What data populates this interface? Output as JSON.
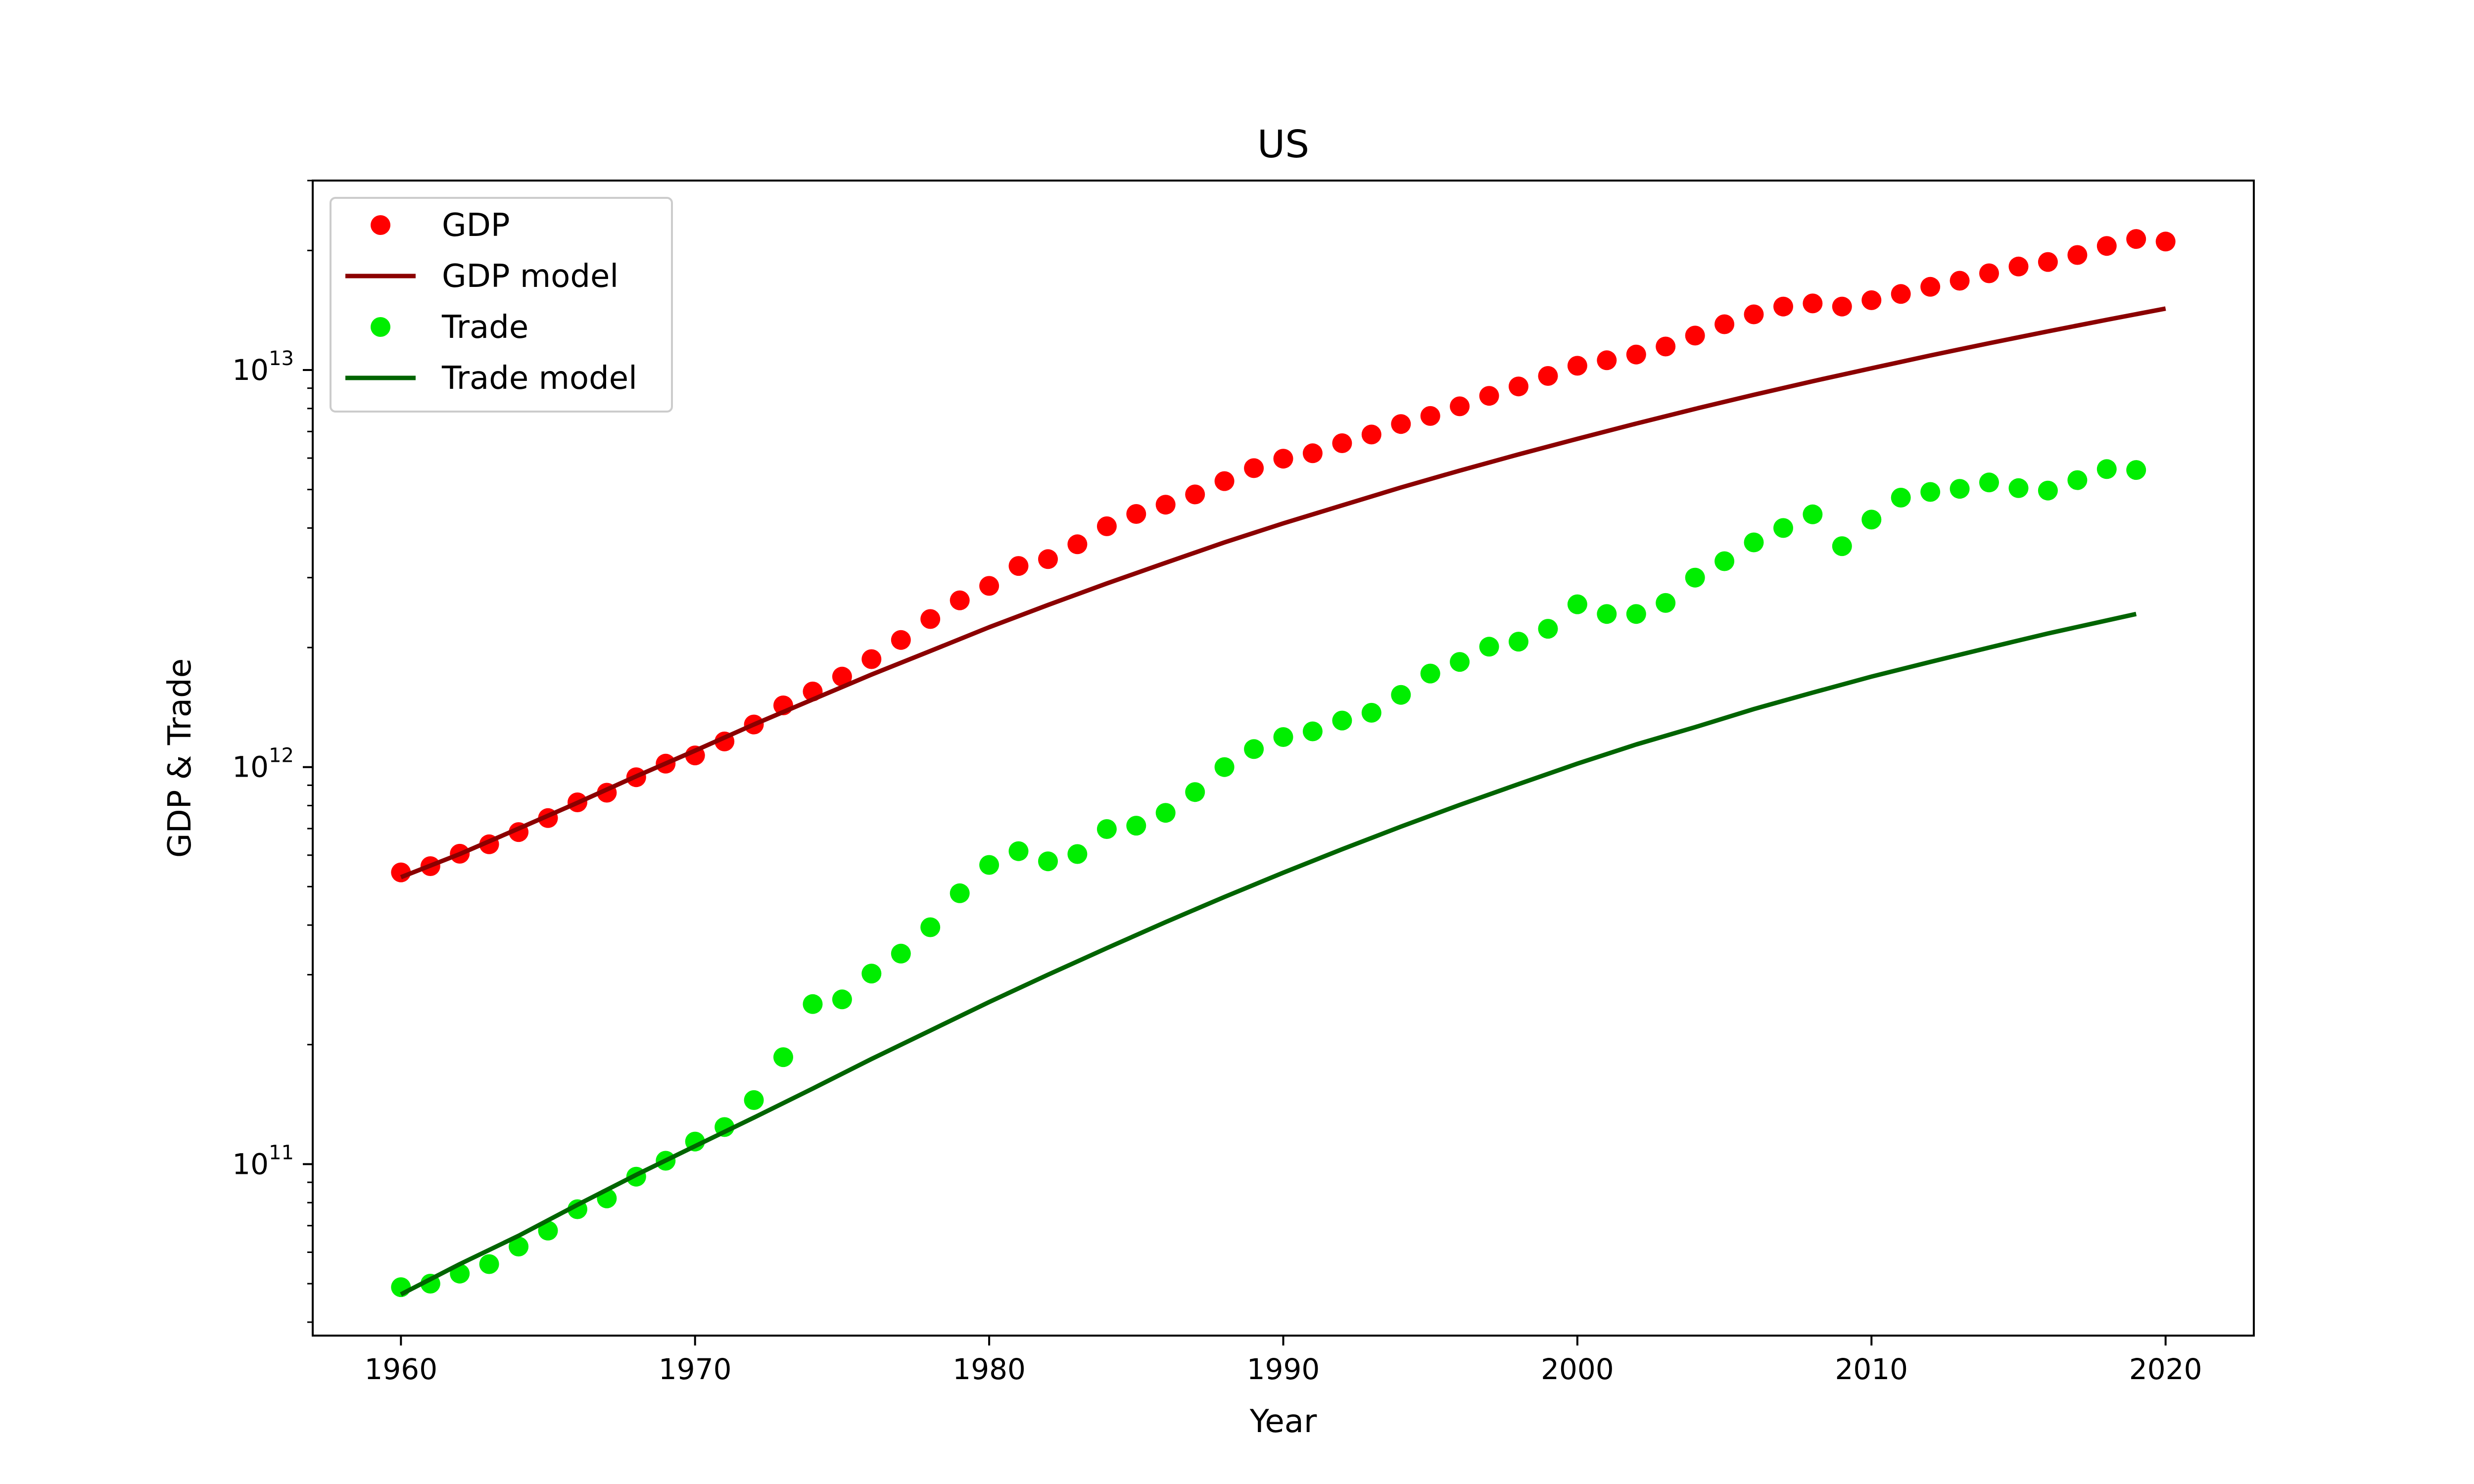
{
  "chart_data": {
    "type": "scatter",
    "title": "US",
    "xlabel": "Year",
    "ylabel": "GDP & Trade",
    "xlim": [
      1957,
      2023
    ],
    "ylim": [
      37000000000,
      30000000000000
    ],
    "yscale": "log",
    "grid": false,
    "legend_position": "top-left",
    "x_ticks": [
      {
        "value": 1960,
        "label": "1960"
      },
      {
        "value": 1970,
        "label": "1970"
      },
      {
        "value": 1980,
        "label": "1980"
      },
      {
        "value": 1990,
        "label": "1990"
      },
      {
        "value": 2000,
        "label": "2000"
      },
      {
        "value": 2010,
        "label": "2010"
      },
      {
        "value": 2020,
        "label": "2020"
      }
    ],
    "y_ticks": [
      {
        "value": 100000000000,
        "base": "10",
        "exp": "11"
      },
      {
        "value": 1000000000000,
        "base": "10",
        "exp": "12"
      },
      {
        "value": 10000000000000,
        "base": "10",
        "exp": "13"
      }
    ],
    "series": [
      {
        "name": "GDP",
        "kind": "scatter",
        "color": "#ff0000",
        "x": [
          1960,
          1961,
          1962,
          1963,
          1964,
          1965,
          1966,
          1967,
          1968,
          1969,
          1970,
          1971,
          1972,
          1973,
          1974,
          1975,
          1976,
          1977,
          1978,
          1979,
          1980,
          1981,
          1982,
          1983,
          1984,
          1985,
          1986,
          1987,
          1988,
          1989,
          1990,
          1991,
          1992,
          1993,
          1994,
          1995,
          1996,
          1997,
          1998,
          1999,
          2000,
          2001,
          2002,
          2003,
          2004,
          2005,
          2006,
          2007,
          2008,
          2009,
          2010,
          2011,
          2012,
          2013,
          2014,
          2015,
          2016,
          2017,
          2018,
          2019,
          2020
        ],
        "y": [
          543000000000,
          563000000000,
          605000000000,
          639000000000,
          686000000000,
          744000000000,
          815000000000,
          862000000000,
          943000000000,
          1020000000000,
          1070000000000,
          1160000000000,
          1280000000000,
          1430000000000,
          1550000000000,
          1690000000000,
          1870000000000,
          2090000000000,
          2360000000000,
          2630000000000,
          2860000000000,
          3210000000000,
          3340000000000,
          3640000000000,
          4040000000000,
          4340000000000,
          4580000000000,
          4860000000000,
          5250000000000,
          5660000000000,
          5980000000000,
          6170000000000,
          6540000000000,
          6880000000000,
          7310000000000,
          7660000000000,
          8100000000000,
          8610000000000,
          9090000000000,
          9660000000000,
          10250000000000,
          10580000000000,
          10940000000000,
          11460000000000,
          12210000000000,
          13040000000000,
          13810000000000,
          14450000000000,
          14710000000000,
          14450000000000,
          14990000000000,
          15540000000000,
          16200000000000,
          16780000000000,
          17520000000000,
          18220000000000,
          18710000000000,
          19480000000000,
          20530000000000,
          21380000000000,
          21060000000000
        ]
      },
      {
        "name": "GDP model",
        "kind": "line",
        "color": "#8b0000",
        "x": [
          1960,
          1962,
          1964,
          1966,
          1968,
          1970,
          1972,
          1974,
          1976,
          1978,
          1980,
          1982,
          1984,
          1986,
          1988,
          1990,
          1992,
          1994,
          1996,
          1998,
          2000,
          2002,
          2004,
          2006,
          2008,
          2010,
          2012,
          2014,
          2016,
          2018,
          2020
        ],
        "y": [
          528000000000,
          604000000000,
          700000000000,
          813000000000,
          948000000000,
          1100000000000,
          1280000000000,
          1480000000000,
          1710000000000,
          1960000000000,
          2250000000000,
          2560000000000,
          2900000000000,
          3270000000000,
          3680000000000,
          4110000000000,
          4560000000000,
          5060000000000,
          5580000000000,
          6130000000000,
          6710000000000,
          7330000000000,
          7980000000000,
          8660000000000,
          9370000000000,
          10100000000000,
          10880000000000,
          11680000000000,
          12510000000000,
          13380000000000,
          14280000000000
        ]
      },
      {
        "name": "Trade",
        "kind": "scatter",
        "color": "#00ee00",
        "x": [
          1960,
          1961,
          1962,
          1963,
          1964,
          1965,
          1966,
          1967,
          1968,
          1969,
          1970,
          1971,
          1972,
          1973,
          1974,
          1975,
          1976,
          1977,
          1978,
          1979,
          1980,
          1981,
          1982,
          1983,
          1984,
          1985,
          1986,
          1987,
          1988,
          1989,
          1990,
          1991,
          1992,
          1993,
          1994,
          1995,
          1996,
          1997,
          1998,
          1999,
          2000,
          2001,
          2002,
          2003,
          2004,
          2005,
          2006,
          2007,
          2008,
          2009,
          2010,
          2011,
          2012,
          2013,
          2014,
          2015,
          2016,
          2017,
          2018,
          2019
        ],
        "y": [
          49000000000,
          50000000000,
          53000000000,
          56000000000,
          62000000000,
          68000000000,
          77000000000,
          82000000000,
          93000000000,
          102000000000,
          114000000000,
          124000000000,
          145000000000,
          186000000000,
          253000000000,
          260000000000,
          302000000000,
          339000000000,
          395000000000,
          481000000000,
          567000000000,
          614000000000,
          579000000000,
          604000000000,
          698000000000,
          712000000000,
          767000000000,
          865000000000,
          1000000000000,
          1110000000000,
          1190000000000,
          1230000000000,
          1310000000000,
          1370000000000,
          1520000000000,
          1720000000000,
          1840000000000,
          2010000000000,
          2070000000000,
          2230000000000,
          2570000000000,
          2430000000000,
          2430000000000,
          2590000000000,
          3000000000000,
          3300000000000,
          3680000000000,
          4000000000000,
          4330000000000,
          3600000000000,
          4200000000000,
          4770000000000,
          4930000000000,
          5020000000000,
          5210000000000,
          5040000000000,
          4970000000000,
          5280000000000,
          5630000000000,
          5600000000000
        ]
      },
      {
        "name": "Trade model",
        "kind": "line",
        "color": "#006400",
        "x": [
          1960,
          1962,
          1964,
          1966,
          1968,
          1970,
          1972,
          1974,
          1976,
          1978,
          1980,
          1982,
          1984,
          1986,
          1988,
          1990,
          1992,
          1994,
          1996,
          1998,
          2000,
          2002,
          2004,
          2006,
          2008,
          2010,
          2012,
          2014,
          2016,
          2018,
          2019
        ],
        "y": [
          47000000000,
          56000000000,
          66000000000,
          79000000000,
          94000000000,
          111000000000,
          131000000000,
          155000000000,
          184000000000,
          217000000000,
          256000000000,
          300000000000,
          350000000000,
          407000000000,
          471000000000,
          542000000000,
          621000000000,
          708000000000,
          803000000000,
          906000000000,
          1020000000000,
          1140000000000,
          1260000000000,
          1400000000000,
          1540000000000,
          1690000000000,
          1840000000000,
          2000000000000,
          2170000000000,
          2340000000000,
          2430000000000
        ]
      }
    ]
  }
}
